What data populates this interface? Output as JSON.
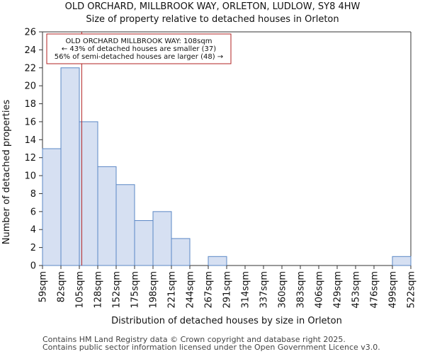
{
  "chart_data": {
    "type": "bar",
    "title": "OLD ORCHARD, MILLBROOK WAY, ORLETON, LUDLOW, SY8 4HW",
    "subtitle": "Size of property relative to detached houses in Orleton",
    "xlabel": "Distribution of detached houses by size in Orleton",
    "ylabel": "Number of detached properties",
    "bin_edges": [
      59,
      82,
      105,
      128,
      152,
      175,
      198,
      221,
      244,
      267,
      291,
      314,
      337,
      360,
      383,
      406,
      429,
      453,
      476,
      499,
      522
    ],
    "tick_labels": [
      "59sqm",
      "82sqm",
      "105sqm",
      "128sqm",
      "152sqm",
      "175sqm",
      "198sqm",
      "221sqm",
      "244sqm",
      "267sqm",
      "291sqm",
      "314sqm",
      "337sqm",
      "360sqm",
      "383sqm",
      "406sqm",
      "429sqm",
      "453sqm",
      "476sqm",
      "499sqm",
      "522sqm"
    ],
    "values": [
      13,
      22,
      16,
      11,
      9,
      5,
      6,
      3,
      0,
      1,
      0,
      0,
      0,
      0,
      0,
      0,
      0,
      0,
      0,
      1
    ],
    "ylim": [
      0,
      26
    ],
    "yticks": [
      0,
      2,
      4,
      6,
      8,
      10,
      12,
      14,
      16,
      18,
      20,
      22,
      24,
      26
    ],
    "marker_value": 108,
    "bar_color": "#d6e0f2",
    "bar_edge_color": "#5b87c5",
    "marker_color": "#b22222",
    "annotation": {
      "line1": "OLD ORCHARD MILLBROOK WAY: 108sqm",
      "line2": "← 43% of detached houses are smaller (37)",
      "line3": "56% of semi-detached houses are larger (48) →"
    }
  },
  "footer": {
    "line1": "Contains HM Land Registry data © Crown copyright and database right 2025.",
    "line2": "Contains public sector information licensed under the Open Government Licence v3.0."
  }
}
